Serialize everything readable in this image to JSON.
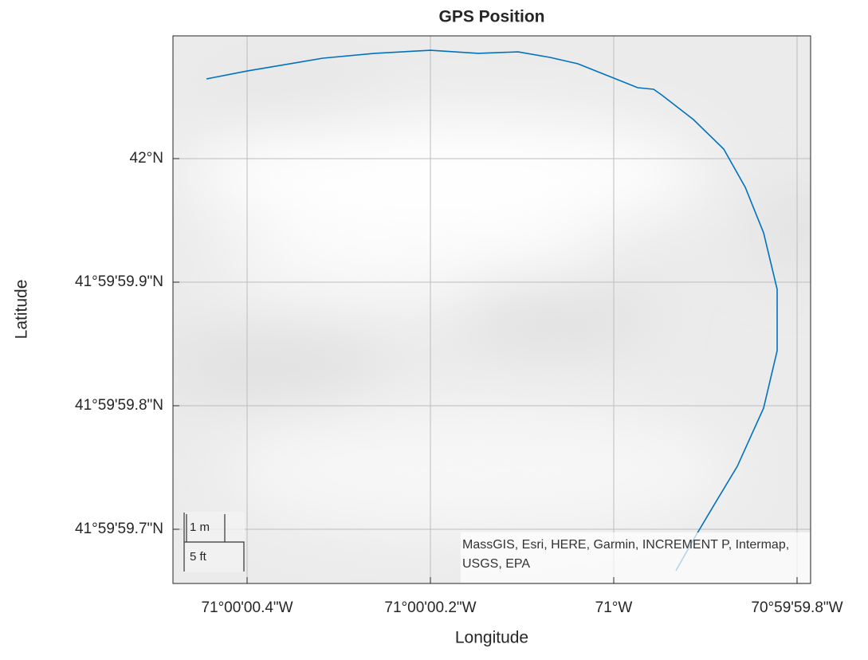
{
  "chart_data": {
    "type": "line",
    "title": "GPS Position",
    "x_label": "Longitude",
    "y_label": "Latitude",
    "color": "#0072bd",
    "grid": true,
    "x": [
      -71.00012343,
      -71.00011111,
      -71.00008816,
      -71.00007246,
      -71.00005556,
      -71.00004106,
      -71.00002899,
      -71.00001932,
      -71.00001087,
      -71.00000242,
      -70.99999275,
      -70.99998792,
      -70.99998551,
      -70.99997585,
      -70.99996667,
      -70.99996014,
      -70.99995459,
      -70.99995048,
      -70.99995048,
      -70.99995459,
      -70.99996256,
      -70.99996981,
      -70.99997585,
      -70.99998116
    ],
    "values": [
      42.00001792,
      42.00001971,
      42.00002258,
      42.00002366,
      42.00002437,
      42.00002366,
      42.00002401,
      42.00002276,
      42.00002133,
      42.00001882,
      42.00001595,
      42.00001559,
      42.00001434,
      42.00000878,
      42.00000215,
      41.99999355,
      41.99998333,
      41.99997061,
      41.99995681,
      41.99994391,
      41.99993082,
      41.99992187,
      41.99991434,
      41.99990735
    ],
    "xlim": [
      -71.00013358,
      -70.99994034
    ],
    "ylim": [
      41.99990448,
      42.0000276
    ],
    "xticks": [
      {
        "value": -71.000111111,
        "label": "71°00'00.4\"W"
      },
      {
        "value": -71.000055556,
        "label": "71°00'00.2\"W"
      },
      {
        "value": -71,
        "label": "71°W"
      },
      {
        "value": -70.999944444,
        "label": "70°59'59.8\"W"
      }
    ],
    "yticks": [
      {
        "value": 41.999916667,
        "label": "41°59'59.7\"N"
      },
      {
        "value": 41.999944444,
        "label": "41°59'59.8\"N"
      },
      {
        "value": 41.999972222,
        "label": "41°59'59.9\"N"
      },
      {
        "value": 42,
        "label": "42°N"
      }
    ],
    "scale_bar": {
      "metric": "1 m",
      "imperial": "5 ft"
    },
    "attribution": "MassGIS, Esri, HERE, Garmin, INCREMENT P, Intermap, USGS, EPA"
  }
}
